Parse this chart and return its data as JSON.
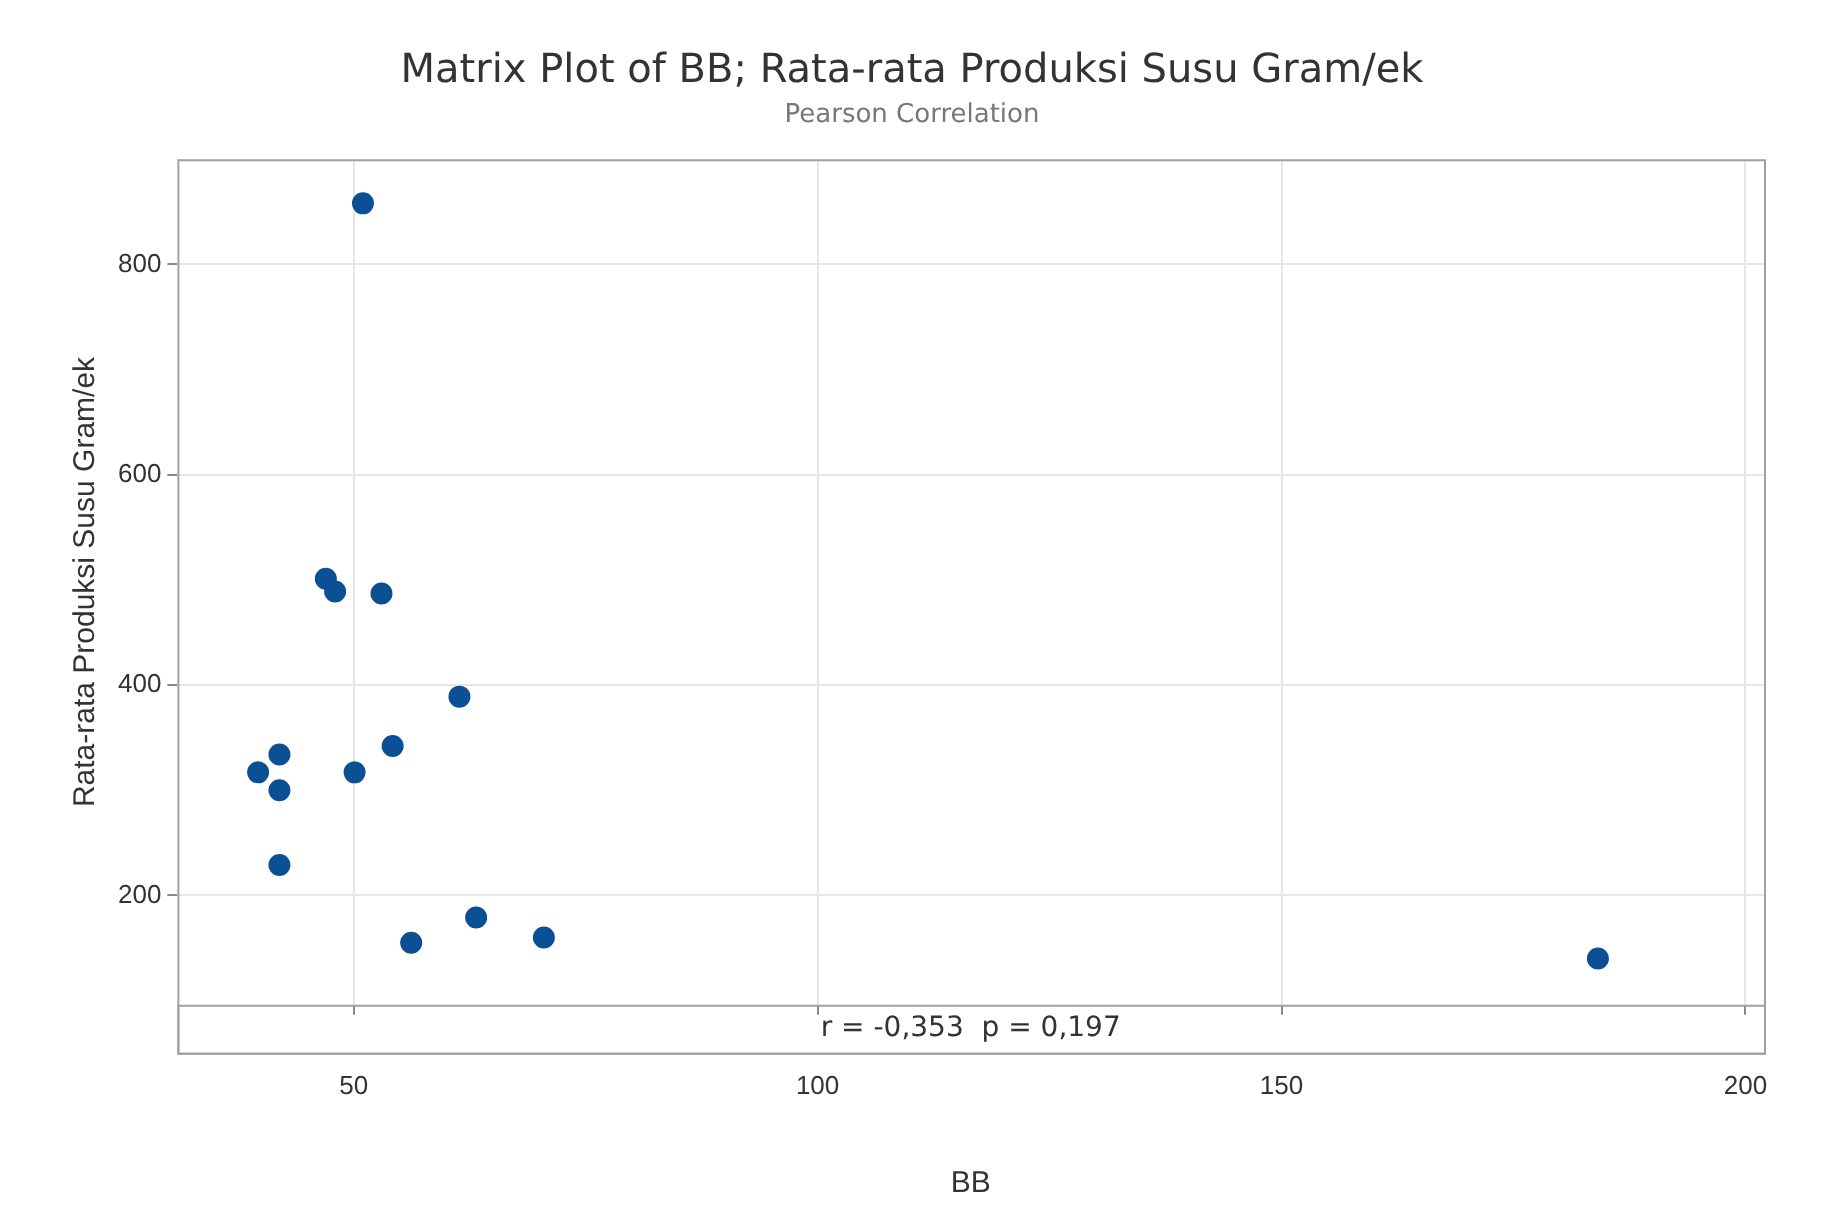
{
  "chart_data": {
    "type": "scatter",
    "title": "Matrix Plot of BB; Rata-rata Produksi Susu Gram/ek",
    "subtitle": "Pearson Correlation",
    "xlabel": "BB",
    "ylabel": "Rata-rata Produksi Susu Gram/ek",
    "x": [
      51,
      47,
      48,
      53,
      61.4,
      54.2,
      42,
      39.7,
      50.1,
      42,
      42,
      63.2,
      56.2,
      70.5,
      184.1
    ],
    "series": [
      {
        "color": "#0b4f94",
        "values": [
          858,
          501,
          489,
          487,
          389,
          342,
          334,
          317,
          317,
          300,
          229,
          179,
          155,
          160,
          140
        ]
      }
    ],
    "xlim": [
      31,
      202
    ],
    "ylim": [
      96,
      900
    ],
    "xticks": [
      50,
      100,
      150,
      200
    ],
    "yticks": [
      200,
      400,
      600,
      800
    ],
    "annotations": [
      "r = -0,353  p = 0,197"
    ],
    "grid": true,
    "legend": false,
    "marker": "circle"
  }
}
